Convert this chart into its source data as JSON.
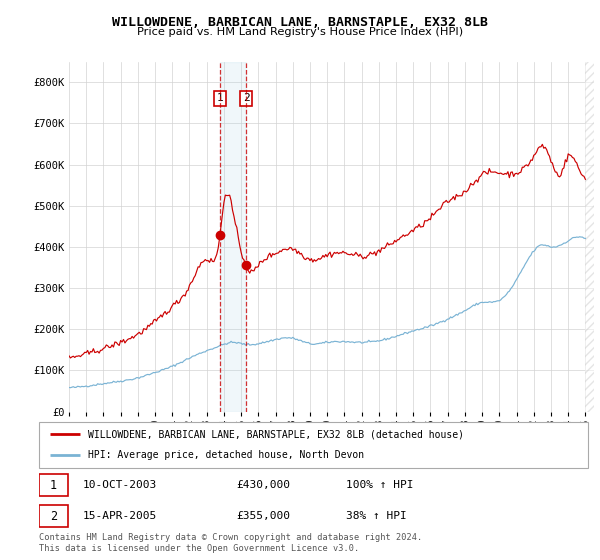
{
  "title": "WILLOWDENE, BARBICAN LANE, BARNSTAPLE, EX32 8LB",
  "subtitle": "Price paid vs. HM Land Registry's House Price Index (HPI)",
  "hpi_label": "HPI: Average price, detached house, North Devon",
  "price_label": "WILLOWDENE, BARBICAN LANE, BARNSTAPLE, EX32 8LB (detached house)",
  "transaction1": {
    "num": "1",
    "date": "10-OCT-2003",
    "price": "£430,000",
    "hpi": "100% ↑ HPI"
  },
  "transaction2": {
    "num": "2",
    "date": "15-APR-2005",
    "price": "£355,000",
    "hpi": "38% ↑ HPI"
  },
  "footnote": "Contains HM Land Registry data © Crown copyright and database right 2024.\nThis data is licensed under the Open Government Licence v3.0.",
  "hpi_color": "#7ab3d4",
  "price_color": "#cc0000",
  "vline1_x": 2003.78,
  "vline2_x": 2005.29,
  "marker1_x": 2003.78,
  "marker1_y": 430000,
  "marker2_x": 2005.29,
  "marker2_y": 355000,
  "ylim": [
    0,
    850000
  ],
  "xlim_start": 1995.0,
  "xlim_end": 2025.5,
  "ylabel_ticks": [
    0,
    100000,
    200000,
    300000,
    400000,
    500000,
    600000,
    700000,
    800000
  ],
  "ylabel_labels": [
    "£0",
    "£100K",
    "£200K",
    "£300K",
    "£400K",
    "£500K",
    "£600K",
    "£700K",
    "£800K"
  ],
  "xticks": [
    1995,
    1996,
    1997,
    1998,
    1999,
    2000,
    2001,
    2002,
    2003,
    2004,
    2005,
    2006,
    2007,
    2008,
    2009,
    2010,
    2011,
    2012,
    2013,
    2014,
    2015,
    2016,
    2017,
    2018,
    2019,
    2020,
    2021,
    2022,
    2023,
    2024,
    2025
  ],
  "hpi_waypoints_t": [
    1995.0,
    1996.0,
    1997.0,
    1998.0,
    1999.0,
    2000.0,
    2001.0,
    2002.0,
    2003.0,
    2003.78,
    2004.5,
    2005.29,
    2006.0,
    2007.0,
    2008.0,
    2009.0,
    2010.0,
    2011.0,
    2012.0,
    2013.0,
    2014.0,
    2015.0,
    2016.0,
    2017.0,
    2018.0,
    2019.0,
    2020.0,
    2021.0,
    2022.0,
    2022.5,
    2023.0,
    2024.0,
    2025.0
  ],
  "hpi_waypoints_v": [
    58000,
    62000,
    68000,
    74000,
    82000,
    95000,
    110000,
    130000,
    148000,
    160000,
    168000,
    163000,
    165000,
    175000,
    178000,
    165000,
    168000,
    170000,
    168000,
    172000,
    183000,
    196000,
    208000,
    225000,
    245000,
    265000,
    270000,
    320000,
    390000,
    405000,
    400000,
    415000,
    420000
  ],
  "price_waypoints_t": [
    1995.0,
    1996.0,
    1997.0,
    1998.0,
    1999.0,
    2000.0,
    2001.0,
    2002.0,
    2003.0,
    2003.78,
    2004.0,
    2004.5,
    2005.0,
    2005.29,
    2005.5,
    2006.0,
    2007.0,
    2008.0,
    2009.0,
    2010.0,
    2011.0,
    2012.0,
    2013.0,
    2014.0,
    2015.0,
    2016.0,
    2017.0,
    2018.0,
    2019.0,
    2020.0,
    2021.0,
    2022.0,
    2022.5,
    2023.0,
    2023.5,
    2024.0,
    2024.5,
    2025.0
  ],
  "price_waypoints_v": [
    130000,
    140000,
    153000,
    168000,
    188000,
    218000,
    255000,
    305000,
    370000,
    430000,
    510000,
    490000,
    390000,
    355000,
    340000,
    355000,
    385000,
    395000,
    370000,
    380000,
    385000,
    378000,
    390000,
    415000,
    440000,
    470000,
    510000,
    535000,
    575000,
    580000,
    580000,
    620000,
    645000,
    610000,
    575000,
    620000,
    600000,
    570000
  ]
}
